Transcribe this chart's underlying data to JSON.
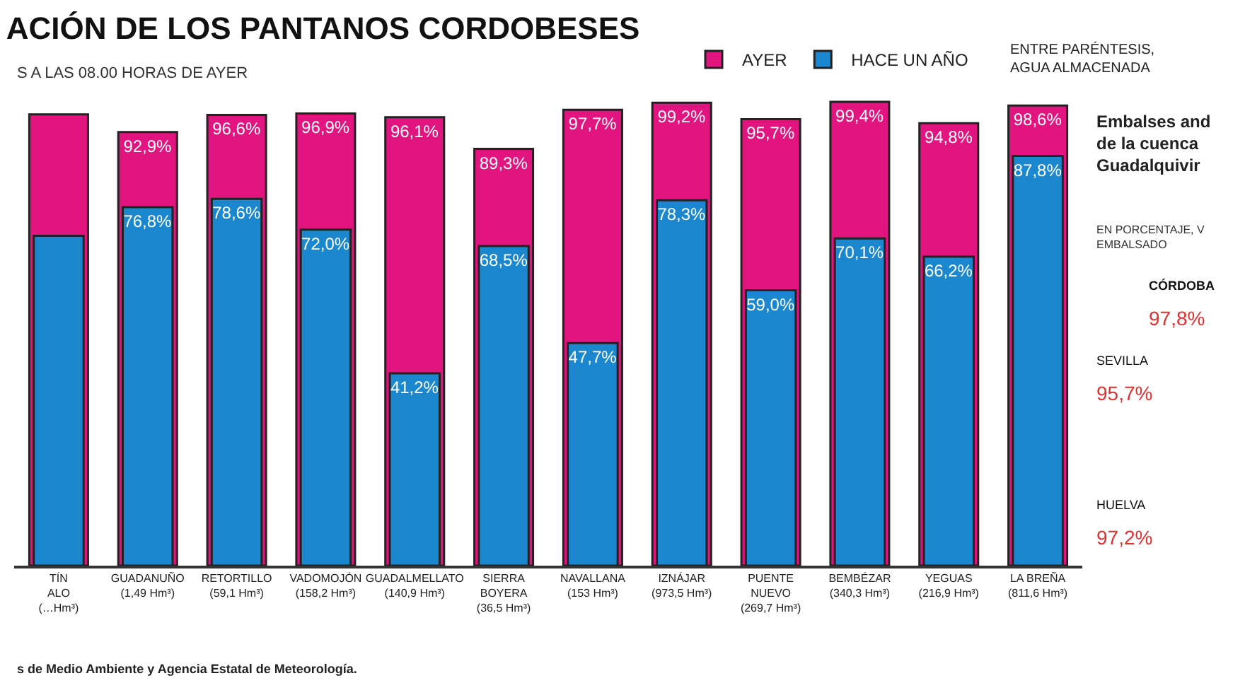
{
  "chart_data": {
    "type": "bar",
    "title": "ACIÓN DE LOS PANTANOS CORDOBESES",
    "subtitle": "S A LAS 08.00 HORAS DE AYER",
    "categories": [
      "TÍN\nALO\n(…Hm³)",
      "GUADANUÑO\n(1,49 Hm³)",
      "RETORTILLO\n(59,1 Hm³)",
      "VADOMOJÓN\n(158,2 Hm³)",
      "GUADALMELLATO\n(140,9 Hm³)",
      "SIERRA\nBOYERA\n(36,5 Hm³)",
      "NAVALLANA\n(153 Hm³)",
      "IZNÁJAR\n(973,5 Hm³)",
      "PUENTE\nNUEVO\n(269,7 Hm³)",
      "BEMBÉZAR\n(340,3 Hm³)",
      "YEGUAS\n(216,9 Hm³)",
      "LA BREÑA\n(811,6 Hm³)"
    ],
    "series": [
      {
        "name": "AYER",
        "color": "#e2147f",
        "values": [
          96.7,
          92.9,
          96.6,
          96.9,
          96.1,
          89.3,
          97.7,
          99.2,
          95.7,
          99.4,
          94.8,
          98.6
        ],
        "value_labels": [
          null,
          "92,9%",
          "96,6%",
          "96,9%",
          "96,1%",
          "89,3%",
          "97,7%",
          "99,2%",
          "95,7%",
          "99,4%",
          "94,8%",
          "98,6%"
        ]
      },
      {
        "name": "HACE UN AÑO",
        "color": "#1a87cf",
        "values": [
          70.7,
          76.8,
          78.6,
          72.0,
          41.2,
          68.5,
          47.7,
          78.3,
          59.0,
          70.1,
          66.2,
          87.8
        ],
        "value_labels": [
          null,
          "76,8%",
          "78,6%",
          "72,0%",
          "41,2%",
          "68,5%",
          "47,7%",
          "78,3%",
          "59,0%",
          "70,1%",
          "66,2%",
          "87,8%"
        ]
      }
    ],
    "ylim": [
      0,
      100
    ],
    "tick_labels": "x",
    "legend": "top",
    "annotations": [
      "ENTRE PARÉNTESIS,\nAGUA ALMACENADA",
      "s de Medio Ambiente y Agencia Estatal de Meteorología.",
      "Embalses and\nde la cuenca\nGuadalquivir",
      "EN PORCENTAJE, V\nEMBALSADO",
      "CÓRDOBA",
      "97,8%",
      "SEVILLA",
      "95,7%",
      "HUELVA",
      "97,2%"
    ]
  }
}
